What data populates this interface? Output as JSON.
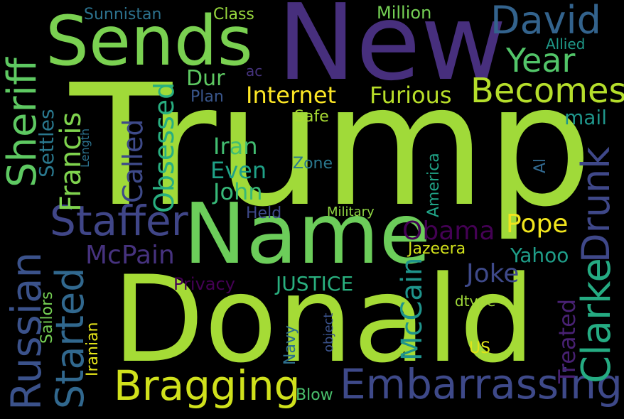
{
  "words": [
    {
      "text": "Trump",
      "color": "#a0da39"
    },
    {
      "text": "Donald",
      "color": "#a5db36"
    },
    {
      "text": "New",
      "color": "#472f7d"
    },
    {
      "text": "Name",
      "color": "#6ccd5a"
    },
    {
      "text": "Sends",
      "color": "#7ad151"
    },
    {
      "text": "Embarrassing",
      "color": "#3e4989"
    },
    {
      "text": "Bragging",
      "color": "#d0e11c"
    },
    {
      "text": "Russian",
      "color": "#3b528b"
    },
    {
      "text": "Staffer",
      "color": "#404688"
    },
    {
      "text": "Sheriff",
      "color": "#5ec962"
    },
    {
      "text": "Started",
      "color": "#31688e"
    },
    {
      "text": "Clarke",
      "color": "#25ab82"
    },
    {
      "text": "Drunk",
      "color": "#3f4889"
    },
    {
      "text": "David",
      "color": "#33638d"
    },
    {
      "text": "Becomes",
      "color": "#b5de2b"
    },
    {
      "text": "Year",
      "color": "#52c569"
    },
    {
      "text": "Internet",
      "color": "#fde725"
    },
    {
      "text": "Furious",
      "color": "#b8de29"
    },
    {
      "text": "Obsessed",
      "color": "#28ae80"
    },
    {
      "text": "Called",
      "color": "#3e4a89"
    },
    {
      "text": "Francis",
      "color": "#7fd34e"
    },
    {
      "text": "McCain",
      "color": "#1f948c"
    },
    {
      "text": "Treated",
      "color": "#482173"
    },
    {
      "text": "Obama",
      "color": "#440154"
    },
    {
      "text": "Pope",
      "color": "#f1e51d"
    },
    {
      "text": "McPain",
      "color": "#46327e"
    },
    {
      "text": "Joke",
      "color": "#3e4989"
    },
    {
      "text": "JUSTICE",
      "color": "#29af7f"
    },
    {
      "text": "John",
      "color": "#37b878"
    },
    {
      "text": "Even",
      "color": "#1fa187"
    },
    {
      "text": "Iran",
      "color": "#42be71"
    },
    {
      "text": "Dur",
      "color": "#5ec962"
    },
    {
      "text": "Yahoo",
      "color": "#1f9e89"
    },
    {
      "text": "mail",
      "color": "#1f968b"
    },
    {
      "text": "Settles",
      "color": "#2a788e"
    },
    {
      "text": "Jazeera",
      "color": "#d2e21b"
    },
    {
      "text": "Iranian",
      "color": "#e5e419"
    },
    {
      "text": "Sailors",
      "color": "#75d054"
    },
    {
      "text": "Million",
      "color": "#75d054"
    },
    {
      "text": "Sunnistan",
      "color": "#2c728e"
    },
    {
      "text": "Class",
      "color": "#98d83e"
    },
    {
      "text": "Allied",
      "color": "#1f9a8a"
    },
    {
      "text": "Plan",
      "color": "#39568c"
    },
    {
      "text": "Safe",
      "color": "#a8db34"
    },
    {
      "text": "Zone",
      "color": "#2a788e"
    },
    {
      "text": "Held",
      "color": "#3e4989"
    },
    {
      "text": "Military",
      "color": "#90d743"
    },
    {
      "text": "America",
      "color": "#20a386"
    },
    {
      "text": "Privacy",
      "color": "#440154"
    },
    {
      "text": "dtype",
      "color": "#a0da39"
    },
    {
      "text": "Navy",
      "color": "#2d708e"
    },
    {
      "text": "object",
      "color": "#3b528b"
    },
    {
      "text": "US",
      "color": "#e2e418"
    },
    {
      "text": "Blow",
      "color": "#4ac16d"
    },
    {
      "text": "ac",
      "color": "#46337e"
    },
    {
      "text": "Length",
      "color": "#2c728e"
    },
    {
      "text": "Al",
      "color": "#31688e"
    }
  ]
}
